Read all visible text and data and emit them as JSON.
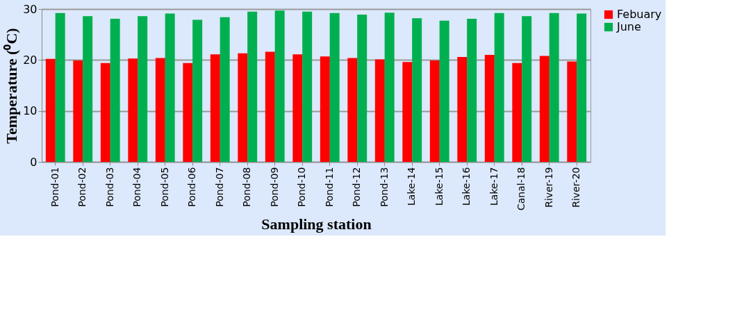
{
  "chart_data": {
    "type": "bar",
    "xlabel": "Sampling station",
    "ylabel": "Temperature (⁰C)",
    "categories": [
      "Pond-01",
      "Pond-02",
      "Pond-03",
      "Pond-04",
      "Pond-05",
      "Pond-06",
      "Pond-07",
      "Pond-08",
      "Pond-09",
      "Pond-10",
      "Pond-11",
      "Pond-12",
      "Pond-13",
      "Lake-14",
      "Lake-15",
      "Lake-16",
      "Lake-17",
      "Canal-18",
      "River-19",
      "River-20"
    ],
    "series": [
      {
        "name": "Febuary",
        "color": "#ff0000",
        "values": [
          20.2,
          19.9,
          19.4,
          20.3,
          20.4,
          19.4,
          21.1,
          21.3,
          21.6,
          21.1,
          20.7,
          20.4,
          20.1,
          19.6,
          19.9,
          20.6,
          21.0,
          19.4,
          20.8,
          19.7
        ]
      },
      {
        "name": "June",
        "color": "#00b050",
        "values": [
          29.2,
          28.6,
          28.1,
          28.6,
          29.1,
          27.9,
          28.4,
          29.5,
          29.7,
          29.5,
          29.2,
          28.9,
          29.3,
          28.2,
          27.7,
          28.1,
          29.2,
          28.6,
          29.2,
          29.1
        ]
      }
    ],
    "ylim": [
      0,
      30
    ],
    "yticks": [
      0,
      10,
      20,
      30
    ],
    "grid": "y",
    "legend": "right"
  }
}
